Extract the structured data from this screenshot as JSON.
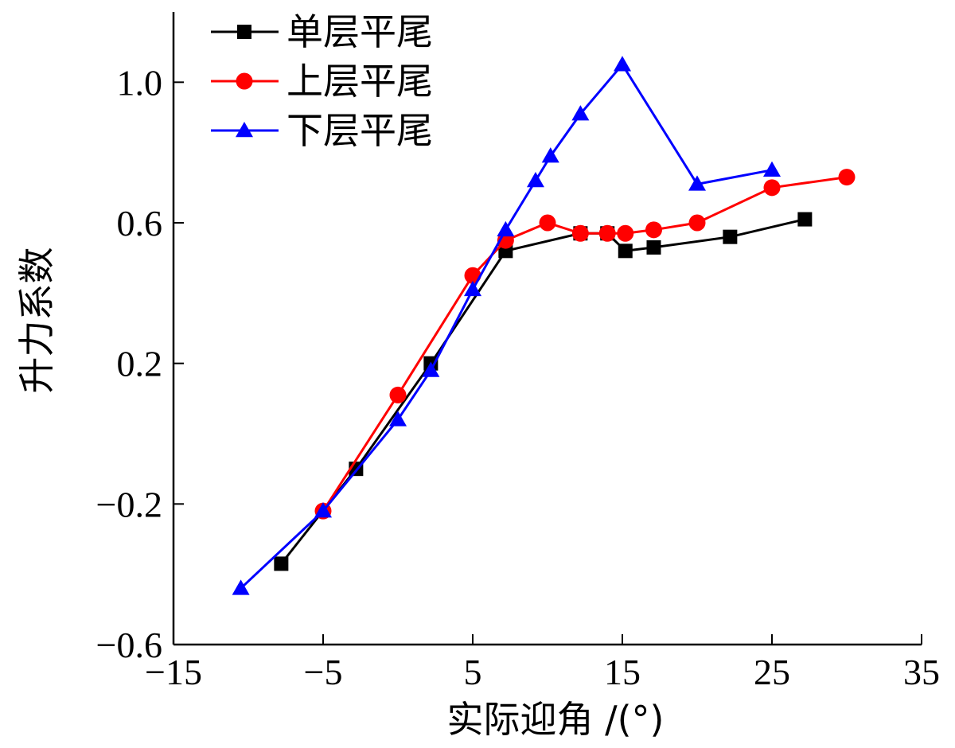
{
  "chart_data": {
    "type": "line",
    "title": "",
    "xlabel": "实际迎角 /(°)",
    "ylabel": "升力系数",
    "xlim": [
      -15,
      35
    ],
    "ylim": [
      -0.6,
      1.2
    ],
    "xticks": [
      -15,
      -5,
      5,
      15,
      25,
      35
    ],
    "xtick_labels": [
      "−15",
      "−5",
      "5",
      "15",
      "25",
      "35"
    ],
    "yticks": [
      -0.6,
      -0.2,
      0.2,
      0.6,
      1.0
    ],
    "ytick_labels": [
      "−0.6",
      "−0.2",
      "0.2",
      "0.6",
      "1.0"
    ],
    "legend_position": "top-left",
    "series": [
      {
        "name": "单层平尾",
        "color": "#000000",
        "marker": "square",
        "points": [
          [
            -7.8,
            -0.37
          ],
          [
            -2.8,
            -0.1
          ],
          [
            2.2,
            0.2
          ],
          [
            7.2,
            0.52
          ],
          [
            12.2,
            0.57
          ],
          [
            14.0,
            0.57
          ],
          [
            15.2,
            0.52
          ],
          [
            17.1,
            0.53
          ],
          [
            22.2,
            0.56
          ],
          [
            27.2,
            0.61
          ]
        ]
      },
      {
        "name": "上层平尾",
        "color": "#ff0000",
        "marker": "circle",
        "points": [
          [
            -5.0,
            -0.22
          ],
          [
            0.0,
            0.11
          ],
          [
            5.0,
            0.45
          ],
          [
            7.2,
            0.55
          ],
          [
            10.0,
            0.6
          ],
          [
            12.2,
            0.57
          ],
          [
            14.0,
            0.57
          ],
          [
            15.2,
            0.57
          ],
          [
            17.1,
            0.58
          ],
          [
            20.0,
            0.6
          ],
          [
            25.0,
            0.7
          ],
          [
            30.0,
            0.73
          ]
        ]
      },
      {
        "name": "下层平尾",
        "color": "#0000ff",
        "marker": "triangle",
        "points": [
          [
            -10.5,
            -0.44
          ],
          [
            -5.0,
            -0.22
          ],
          [
            0.0,
            0.04
          ],
          [
            2.2,
            0.18
          ],
          [
            5.0,
            0.41
          ],
          [
            7.2,
            0.58
          ],
          [
            9.2,
            0.72
          ],
          [
            10.2,
            0.79
          ],
          [
            12.2,
            0.91
          ],
          [
            15.0,
            1.05
          ],
          [
            20.0,
            0.71
          ],
          [
            25.0,
            0.75
          ]
        ]
      }
    ]
  }
}
